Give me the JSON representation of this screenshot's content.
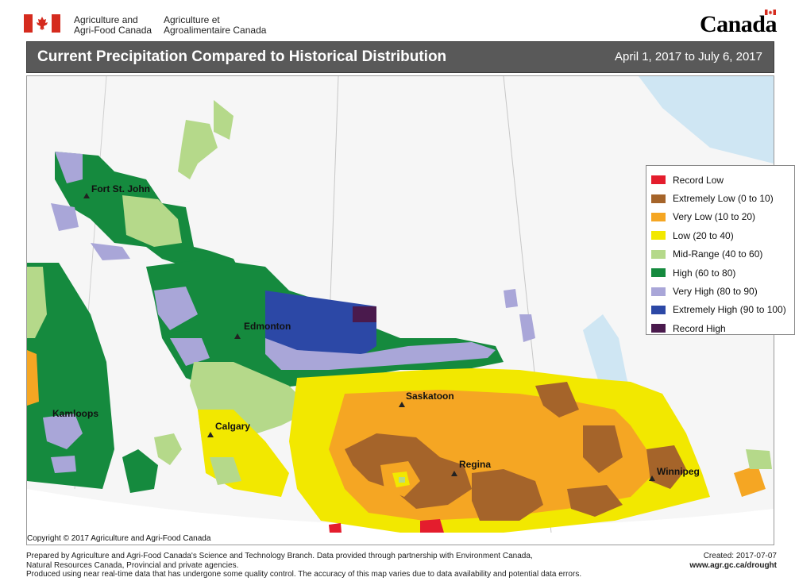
{
  "header": {
    "dept_en_line1": "Agriculture and",
    "dept_en_line2": "Agri-Food Canada",
    "dept_fr_line1": "Agriculture et",
    "dept_fr_line2": "Agroalimentaire Canada",
    "wordmark": "Canada"
  },
  "title": {
    "text": "Current Precipitation Compared to Historical Distribution",
    "period": "April 1, 2017 to July 6, 2017"
  },
  "legend": [
    {
      "label": "Record Low",
      "color": "#e41d2d"
    },
    {
      "label": "Extremely Low (0 to 10)",
      "color": "#a5642a"
    },
    {
      "label": "Very Low (10 to 20)",
      "color": "#f5a623"
    },
    {
      "label": "Low (20 to 40)",
      "color": "#f2e800"
    },
    {
      "label": "Mid-Range (40 to 60)",
      "color": "#b5d98a"
    },
    {
      "label": "High (60 to 80)",
      "color": "#158a3e"
    },
    {
      "label": "Very High (80 to 90)",
      "color": "#a9a6d8"
    },
    {
      "label": "Extremely High (90 to 100)",
      "color": "#2c48a6"
    },
    {
      "label": "Record High",
      "color": "#4a1a4d"
    }
  ],
  "cities": {
    "fort_st_john": "Fort St. John",
    "edmonton": "Edmonton",
    "kamloops": "Kamloops",
    "calgary": "Calgary",
    "saskatoon": "Saskatoon",
    "regina": "Regina",
    "winnipeg": "Winnipeg"
  },
  "copyright": "Copyright © 2017 Agriculture and Agri-Food Canada",
  "footer": {
    "line1": "Prepared by Agriculture and Agri-Food Canada's Science and Technology Branch. Data provided through partnership with Environment Canada,",
    "line2": "Natural Resources Canada, Provincial and private agencies.",
    "line3": "Produced using near real-time data that has undergone some quality control. The accuracy of this map varies due to data availability and potential data errors.",
    "created": "Created: 2017-07-07",
    "url": "www.agr.gc.ca/drought"
  }
}
